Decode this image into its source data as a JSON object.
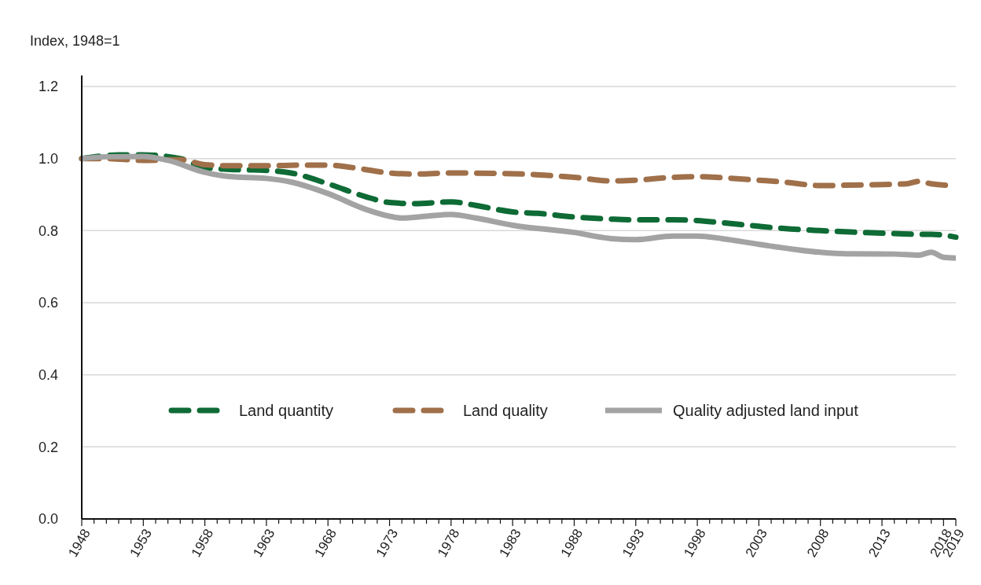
{
  "chart_data": {
    "type": "line",
    "ylabel": "Index, 1948=1",
    "xlim": [
      1948,
      2019
    ],
    "ylim": [
      0,
      1.2
    ],
    "yticks": [
      {
        "value": 0,
        "label": "0.0"
      },
      0.2,
      0.4,
      0.6,
      0.8,
      {
        "value": 1,
        "label": "1.0"
      },
      1.2
    ],
    "xticks": [
      1948,
      {
        "value": 1949,
        "label": null
      },
      {
        "value": 1950,
        "label": null
      },
      {
        "value": 1951,
        "label": null
      },
      {
        "value": 1952,
        "label": null
      },
      1953,
      {
        "value": 1954,
        "label": null
      },
      {
        "value": 1955,
        "label": null
      },
      {
        "value": 1956,
        "label": null
      },
      {
        "value": 1957,
        "label": null
      },
      1958,
      {
        "value": 1959,
        "label": null
      },
      {
        "value": 1960,
        "label": null
      },
      {
        "value": 1961,
        "label": null
      },
      {
        "value": 1962,
        "label": null
      },
      1963,
      {
        "value": 1964,
        "label": null
      },
      {
        "value": 1965,
        "label": null
      },
      {
        "value": 1966,
        "label": null
      },
      {
        "value": 1967,
        "label": null
      },
      1968,
      {
        "value": 1969,
        "label": null
      },
      {
        "value": 1970,
        "label": null
      },
      {
        "value": 1971,
        "label": null
      },
      {
        "value": 1972,
        "label": null
      },
      1973,
      {
        "value": 1974,
        "label": null
      },
      {
        "value": 1975,
        "label": null
      },
      {
        "value": 1976,
        "label": null
      },
      {
        "value": 1977,
        "label": null
      },
      1978,
      {
        "value": 1979,
        "label": null
      },
      {
        "value": 1980,
        "label": null
      },
      {
        "value": 1981,
        "label": null
      },
      {
        "value": 1982,
        "label": null
      },
      1983,
      {
        "value": 1984,
        "label": null
      },
      {
        "value": 1985,
        "label": null
      },
      {
        "value": 1986,
        "label": null
      },
      {
        "value": 1987,
        "label": null
      },
      1988,
      {
        "value": 1989,
        "label": null
      },
      {
        "value": 1990,
        "label": null
      },
      {
        "value": 1991,
        "label": null
      },
      {
        "value": 1992,
        "label": null
      },
      1993,
      {
        "value": 1994,
        "label": null
      },
      {
        "value": 1995,
        "label": null
      },
      {
        "value": 1996,
        "label": null
      },
      {
        "value": 1997,
        "label": null
      },
      1998,
      {
        "value": 1999,
        "label": null
      },
      {
        "value": 2000,
        "label": null
      },
      {
        "value": 2001,
        "label": null
      },
      {
        "value": 2002,
        "label": null
      },
      2003,
      {
        "value": 2004,
        "label": null
      },
      {
        "value": 2005,
        "label": null
      },
      {
        "value": 2006,
        "label": null
      },
      {
        "value": 2007,
        "label": null
      },
      2008,
      {
        "value": 2009,
        "label": null
      },
      {
        "value": 2010,
        "label": null
      },
      {
        "value": 2011,
        "label": null
      },
      {
        "value": 2012,
        "label": null
      },
      2013,
      {
        "value": 2014,
        "label": null
      },
      {
        "value": 2015,
        "label": null
      },
      {
        "value": 2016,
        "label": null
      },
      {
        "value": 2017,
        "label": null
      },
      2018,
      2019
    ],
    "grid": "y",
    "legend": "bottom",
    "series": [
      {
        "name": "Land quantity",
        "color": "#0e6b35",
        "line_style": "dashed",
        "x": [
          1948,
          1951,
          1953,
          1956,
          1958,
          1960,
          1963,
          1965,
          1968,
          1971,
          1973,
          1975,
          1978,
          1980,
          1983,
          1985,
          1988,
          1991,
          1993,
          1996,
          1998,
          2000,
          2003,
          2005,
          2008,
          2013,
          2016,
          2017,
          2019
        ],
        "values": [
          1.0,
          1.01,
          1.01,
          1.0,
          0.975,
          0.97,
          0.967,
          0.96,
          0.93,
          0.895,
          0.878,
          0.875,
          0.88,
          0.87,
          0.852,
          0.848,
          0.838,
          0.832,
          0.83,
          0.83,
          0.828,
          0.822,
          0.812,
          0.806,
          0.8,
          0.793,
          0.79,
          0.79,
          0.782
        ]
      },
      {
        "name": "Land quality",
        "color": "#a0704a",
        "line_style": "dashed",
        "x": [
          1948,
          1950,
          1953,
          1956,
          1958,
          1960,
          1963,
          1966,
          1968,
          1970,
          1973,
          1975,
          1978,
          1983,
          1988,
          1991,
          1993,
          1996,
          1998,
          2000,
          2003,
          2005,
          2008,
          2010,
          2013,
          2015,
          2016,
          2017,
          2019
        ],
        "values": [
          1.0,
          1.0,
          0.995,
          0.997,
          0.983,
          0.98,
          0.98,
          0.982,
          0.982,
          0.975,
          0.96,
          0.957,
          0.96,
          0.958,
          0.948,
          0.938,
          0.94,
          0.948,
          0.95,
          0.947,
          0.94,
          0.935,
          0.925,
          0.926,
          0.928,
          0.93,
          0.937,
          0.93,
          0.925
        ]
      },
      {
        "name": "Quality adjusted land input",
        "color": "#a3a3a3",
        "line_style": "solid",
        "x": [
          1948,
          1950,
          1953,
          1955,
          1958,
          1960,
          1963,
          1965,
          1968,
          1971,
          1973,
          1974,
          1976,
          1978,
          1980,
          1983,
          1988,
          1991,
          1993,
          1996,
          1998,
          2000,
          2003,
          2008,
          2010,
          2014,
          2016,
          2017,
          2018,
          2019
        ],
        "values": [
          1.0,
          1.005,
          1.006,
          0.995,
          0.962,
          0.95,
          0.945,
          0.935,
          0.903,
          0.86,
          0.84,
          0.835,
          0.84,
          0.845,
          0.835,
          0.815,
          0.795,
          0.778,
          0.775,
          0.785,
          0.785,
          0.778,
          0.762,
          0.74,
          0.736,
          0.735,
          0.732,
          0.74,
          0.726,
          0.724
        ]
      }
    ]
  }
}
